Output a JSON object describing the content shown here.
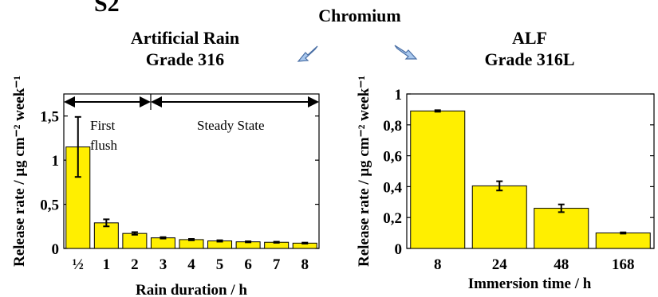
{
  "figure": {
    "title": "Chromium",
    "corner_mark": "S2",
    "arrow_color": "#a9c8ee",
    "arrow_stroke": "#4a6fa5"
  },
  "chart_data": [
    {
      "type": "bar",
      "title_line1": "Artificial Rain",
      "title_line2": "Grade 316",
      "xlabel": "Rain duration / h",
      "ylabel": "Release rate / μg cm⁻² week⁻¹",
      "categories": [
        "½",
        "1",
        "2",
        "3",
        "4",
        "5",
        "6",
        "7",
        "8"
      ],
      "values": [
        1.15,
        0.29,
        0.17,
        0.12,
        0.1,
        0.085,
        0.075,
        0.07,
        0.06
      ],
      "errors": [
        0.34,
        0.04,
        0.015,
        0.008,
        0.008,
        0.008,
        0.006,
        0.006,
        0.006
      ],
      "ylim": [
        0,
        1.75
      ],
      "yticks": [
        0,
        0.5,
        1,
        1.5
      ],
      "ytick_labels": [
        "0",
        "0,5",
        "1",
        "1,5"
      ],
      "bar_color": "#ffef00",
      "annotations": {
        "first_flush_line1": "First",
        "first_flush_line2": "flush",
        "steady_state": "Steady State"
      }
    },
    {
      "type": "bar",
      "title_line1": "ALF",
      "title_line2": "Grade 316L",
      "xlabel": "Immersion time / h",
      "ylabel": "Release rate / μg cm⁻² week⁻¹",
      "categories": [
        "8",
        "24",
        "48",
        "168"
      ],
      "values": [
        0.89,
        0.405,
        0.26,
        0.1
      ],
      "errors": [
        0.005,
        0.03,
        0.025,
        0.004
      ],
      "ylim": [
        0,
        1
      ],
      "yticks": [
        0,
        0.2,
        0.4,
        0.6,
        0.8,
        1
      ],
      "ytick_labels": [
        "0",
        "0,2",
        "0,4",
        "0,6",
        "0,8",
        "1"
      ],
      "bar_color": "#ffef00"
    }
  ]
}
